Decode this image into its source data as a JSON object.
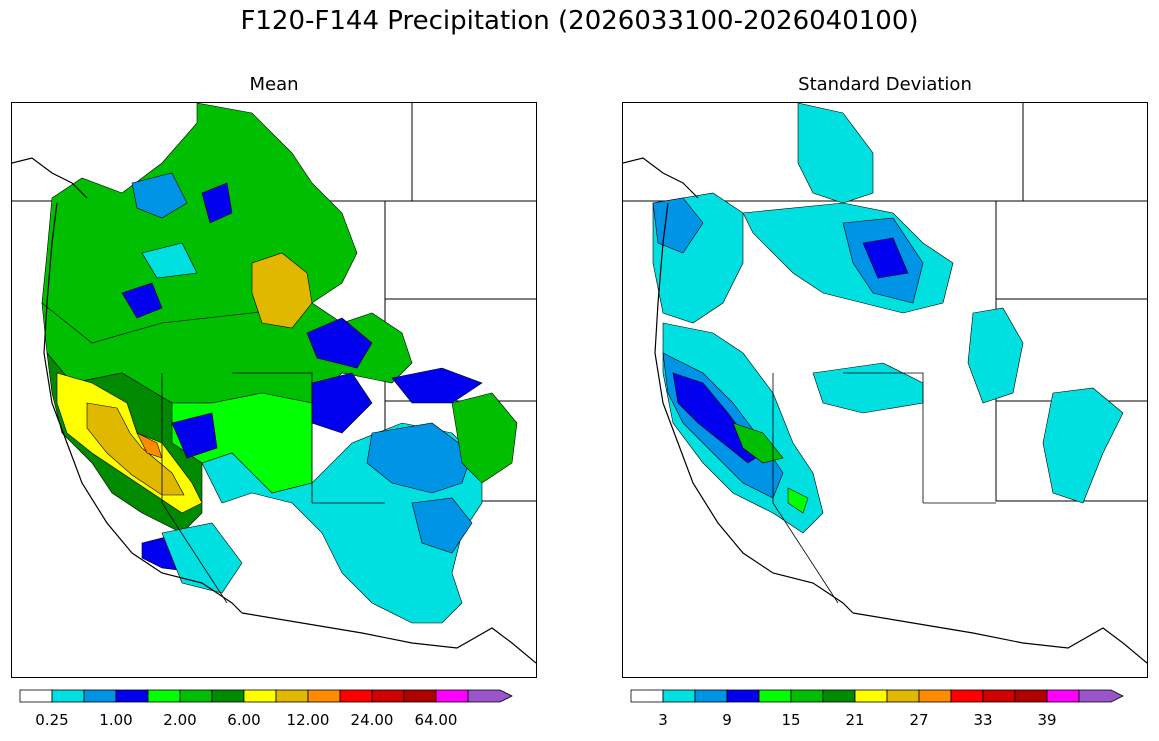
{
  "title": "F120-F144 Precipitation (2026033100-2026040100)",
  "panels": [
    {
      "title": "Mean"
    },
    {
      "title": "Standard Deviation"
    }
  ],
  "colorbar": {
    "colors": [
      "#ffffff",
      "#00e0e0",
      "#0094e6",
      "#0000ee",
      "#00ff00",
      "#00bf00",
      "#008a00",
      "#ffff00",
      "#e0b800",
      "#ff8c00",
      "#ff0000",
      "#d00000",
      "#b00000",
      "#ff00ff",
      "#9a55cc"
    ],
    "mean_ticks": [
      "0.25",
      "1.00",
      "2.00",
      "6.00",
      "12.00",
      "24.00",
      "64.00"
    ],
    "sd_ticks": [
      "3",
      "9",
      "15",
      "21",
      "27",
      "33",
      "39"
    ]
  }
}
